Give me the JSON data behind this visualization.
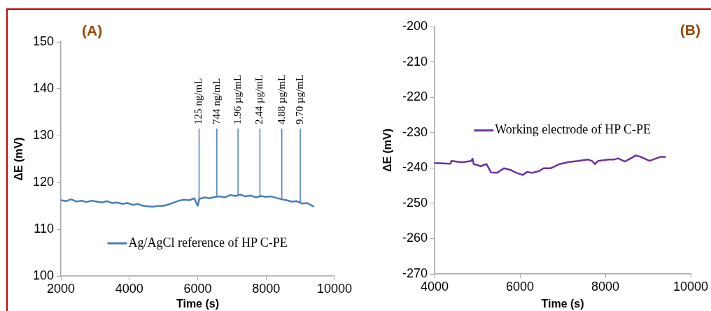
{
  "chart_data": [
    {
      "type": "line",
      "xlabel": "Time (s)",
      "ylabel": "ΔE (mV)",
      "x": [
        2000,
        2150,
        2300,
        2450,
        2600,
        2750,
        2900,
        3050,
        3200,
        3350,
        3500,
        3650,
        3800,
        3950,
        4100,
        4250,
        4400,
        4550,
        4700,
        4850,
        5000,
        5150,
        5300,
        5450,
        5600,
        5750,
        5900,
        6000,
        6050,
        6200,
        6350,
        6500,
        6650,
        6800,
        6950,
        7100,
        7250,
        7400,
        7550,
        7700,
        7850,
        8000,
        8150,
        8300,
        8450,
        8600,
        8750,
        8900,
        9050,
        9200,
        9300,
        9400
      ],
      "series": [
        {
          "name": "Ag/AgCl reference of HP C-PE",
          "color": "#4a7ebb",
          "values": [
            116.2,
            116.0,
            116.4,
            115.9,
            116.1,
            115.8,
            116.1,
            115.9,
            115.7,
            116.0,
            115.6,
            115.7,
            115.4,
            115.6,
            115.2,
            115.4,
            115.0,
            114.9,
            114.8,
            115.0,
            115.0,
            115.3,
            115.7,
            116.1,
            116.3,
            116.2,
            116.6,
            115.0,
            116.5,
            116.8,
            116.6,
            116.9,
            117.0,
            116.8,
            117.3,
            117.1,
            117.4,
            117.0,
            117.2,
            116.8,
            117.1,
            116.9,
            117.0,
            116.7,
            116.4,
            116.2,
            115.9,
            116.0,
            115.5,
            115.6,
            115.2,
            114.8
          ]
        }
      ],
      "xlim": [
        2000,
        10000
      ],
      "xticks": [
        2000,
        4000,
        6000,
        8000,
        10000
      ],
      "ylim": [
        100,
        150
      ],
      "yticks": [
        100,
        110,
        120,
        130,
        140,
        150
      ],
      "grid": false,
      "legend": "bottom",
      "marker": "none",
      "line_style": "solid",
      "annotations": [
        "(A)"
      ],
      "ref_lines": [
        {
          "axis": "x",
          "value": 6040,
          "label": "125 ng/mL"
        },
        {
          "axis": "x",
          "value": 6560,
          "label": "744 ng/mL"
        },
        {
          "axis": "x",
          "value": 7180,
          "label": "1.96 µg/mL"
        },
        {
          "axis": "x",
          "value": 7820,
          "label": "2.44 µg/mL"
        },
        {
          "axis": "x",
          "value": 8460,
          "label": "4.88 µg/mL"
        },
        {
          "axis": "x",
          "value": 9000,
          "label": "9.70 µg/mL"
        }
      ]
    },
    {
      "type": "line",
      "xlabel": "Time (s)",
      "ylabel": "ΔE (mV)",
      "x": [
        4000,
        4371,
        4398,
        4644,
        4862,
        4889,
        4916,
        5080,
        5216,
        5325,
        5462,
        5625,
        5789,
        5898,
        6062,
        6171,
        6280,
        6444,
        6553,
        6716,
        6935,
        7153,
        7371,
        7589,
        7698,
        7753,
        7835,
        8080,
        8216,
        8298,
        8462,
        8707,
        8816,
        9035,
        9171,
        9280,
        9416
      ],
      "series": [
        {
          "name": "Working electrode of HP C-PE",
          "color": "#7030a0",
          "values": [
            -238.6,
            -238.8,
            -238.0,
            -238.4,
            -238.0,
            -237.4,
            -238.9,
            -239.5,
            -238.9,
            -241.3,
            -241.4,
            -240.1,
            -240.6,
            -241.3,
            -242.0,
            -241.1,
            -241.4,
            -240.9,
            -240.1,
            -240.1,
            -238.9,
            -238.3,
            -238.0,
            -237.6,
            -238.1,
            -238.9,
            -238.0,
            -237.6,
            -237.6,
            -237.3,
            -238.2,
            -236.5,
            -236.8,
            -238.0,
            -237.4,
            -236.9,
            -236.9
          ]
        }
      ],
      "xlim": [
        4000,
        10000
      ],
      "xticks": [
        4000,
        6000,
        8000,
        10000
      ],
      "ylim": [
        -270,
        -200
      ],
      "yticks": [
        -270,
        -260,
        -250,
        -240,
        -230,
        -220,
        -210,
        -200
      ],
      "grid": false,
      "legend": "center",
      "marker": "none",
      "line_style": "solid",
      "annotations": [
        "(B)"
      ]
    }
  ]
}
